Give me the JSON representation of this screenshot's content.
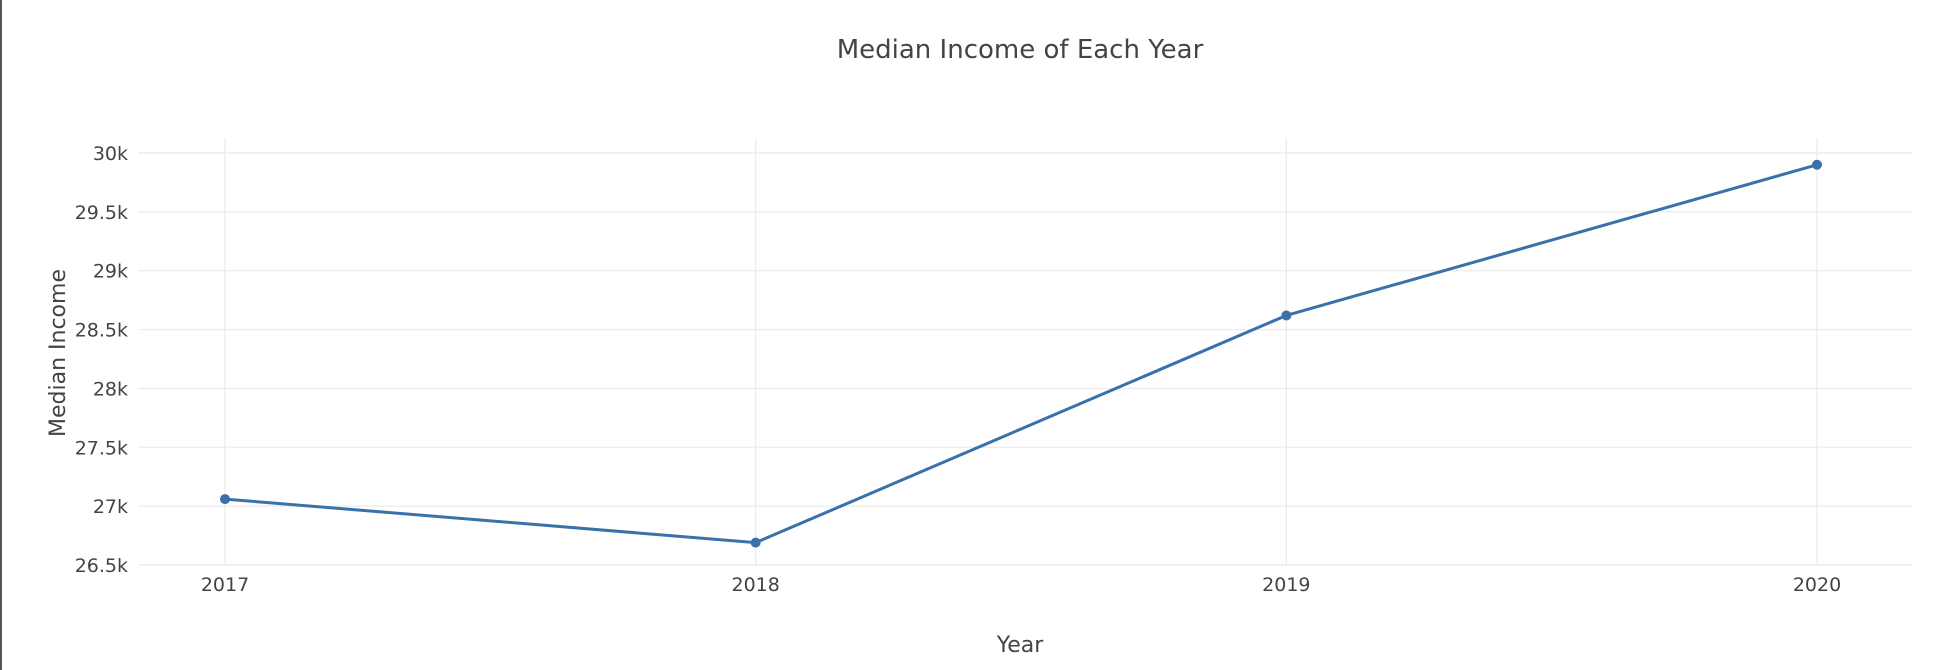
{
  "chart_data": {
    "type": "line",
    "title": "Median Income of Each Year",
    "xlabel": "Year",
    "ylabel": "Median Income",
    "categories": [
      "2017",
      "2018",
      "2019",
      "2020"
    ],
    "series": [
      {
        "values": [
          27060,
          26690,
          28620,
          29900
        ]
      }
    ],
    "ylim": [
      26500,
      30100
    ],
    "yticks": [
      26500,
      27000,
      27500,
      28000,
      28500,
      29000,
      29500,
      30000
    ],
    "ytick_labels": [
      "26.5k",
      "27k",
      "27.5k",
      "28k",
      "28.5k",
      "29k",
      "29.5k",
      "30k"
    ],
    "grid": true,
    "line_color": "#3a71aa",
    "grid_color": "#ebebeb"
  }
}
